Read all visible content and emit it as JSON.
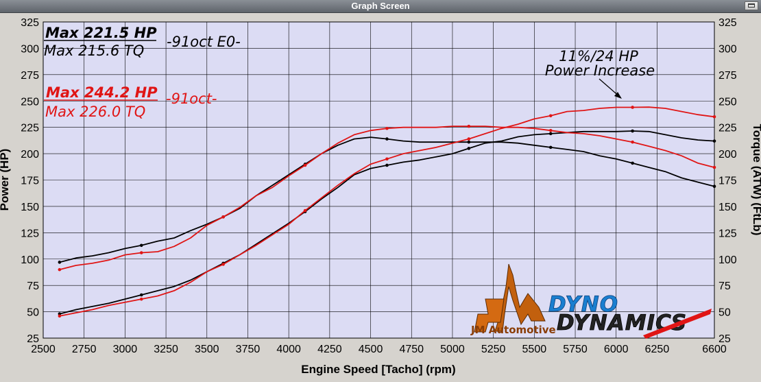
{
  "window": {
    "title": "Graph Screen"
  },
  "chart_data": {
    "type": "line",
    "xlabel": "Engine Speed [Tacho] (rpm)",
    "ylabel_left": "Power (HP)",
    "ylabel_right": "Torque (ATW) (FtLb)",
    "xlim": [
      2500,
      6600
    ],
    "ylim": [
      25,
      325
    ],
    "x_ticks": [
      2500,
      2750,
      3000,
      3250,
      3500,
      3750,
      4000,
      4250,
      4500,
      4750,
      5000,
      5250,
      5500,
      5750,
      6000,
      6250,
      6600
    ],
    "y_ticks": [
      25,
      50,
      75,
      100,
      125,
      150,
      175,
      200,
      225,
      250,
      275,
      300,
      325
    ],
    "grid": true,
    "series": [
      {
        "name": "Power (HP) -91oct E0-",
        "color": "#000000",
        "points": [
          [
            2600,
            48
          ],
          [
            2700,
            52
          ],
          [
            2800,
            55
          ],
          [
            2900,
            58
          ],
          [
            3000,
            62
          ],
          [
            3100,
            66
          ],
          [
            3200,
            70
          ],
          [
            3300,
            74
          ],
          [
            3400,
            80
          ],
          [
            3500,
            88
          ],
          [
            3600,
            96
          ],
          [
            3700,
            104
          ],
          [
            3800,
            114
          ],
          [
            3900,
            124
          ],
          [
            4000,
            134
          ],
          [
            4100,
            145
          ],
          [
            4200,
            157
          ],
          [
            4300,
            168
          ],
          [
            4400,
            180
          ],
          [
            4500,
            186
          ],
          [
            4600,
            189
          ],
          [
            4700,
            192
          ],
          [
            4800,
            194
          ],
          [
            4900,
            197
          ],
          [
            5000,
            200
          ],
          [
            5100,
            205
          ],
          [
            5200,
            210
          ],
          [
            5300,
            212
          ],
          [
            5400,
            216
          ],
          [
            5500,
            218
          ],
          [
            5600,
            219
          ],
          [
            5700,
            220
          ],
          [
            5800,
            221
          ],
          [
            5900,
            221
          ],
          [
            6000,
            221
          ],
          [
            6100,
            221.5
          ],
          [
            6200,
            221
          ],
          [
            6300,
            218
          ],
          [
            6400,
            215
          ],
          [
            6500,
            213
          ],
          [
            6600,
            212
          ]
        ]
      },
      {
        "name": "Torque (FtLb) -91oct E0-",
        "color": "#000000",
        "points": [
          [
            2600,
            97
          ],
          [
            2700,
            101
          ],
          [
            2800,
            103
          ],
          [
            2900,
            106
          ],
          [
            3000,
            110
          ],
          [
            3100,
            113
          ],
          [
            3200,
            117
          ],
          [
            3300,
            120
          ],
          [
            3400,
            127
          ],
          [
            3500,
            133
          ],
          [
            3600,
            140
          ],
          [
            3700,
            148
          ],
          [
            3800,
            160
          ],
          [
            3900,
            170
          ],
          [
            4000,
            180
          ],
          [
            4100,
            190
          ],
          [
            4200,
            200
          ],
          [
            4300,
            208
          ],
          [
            4400,
            214
          ],
          [
            4500,
            215.6
          ],
          [
            4600,
            214
          ],
          [
            4700,
            212
          ],
          [
            4800,
            211
          ],
          [
            4900,
            211
          ],
          [
            5000,
            211
          ],
          [
            5100,
            211
          ],
          [
            5200,
            211
          ],
          [
            5300,
            211
          ],
          [
            5400,
            210
          ],
          [
            5500,
            208
          ],
          [
            5600,
            206
          ],
          [
            5700,
            204
          ],
          [
            5800,
            202
          ],
          [
            5900,
            198
          ],
          [
            6000,
            195
          ],
          [
            6100,
            191
          ],
          [
            6200,
            187
          ],
          [
            6300,
            183
          ],
          [
            6400,
            177
          ],
          [
            6500,
            173
          ],
          [
            6600,
            169
          ]
        ]
      },
      {
        "name": "Power (HP) -91oct-",
        "color": "#e01515",
        "points": [
          [
            2600,
            46
          ],
          [
            2700,
            49
          ],
          [
            2800,
            52
          ],
          [
            2900,
            56
          ],
          [
            3000,
            59
          ],
          [
            3100,
            62
          ],
          [
            3200,
            65
          ],
          [
            3300,
            70
          ],
          [
            3400,
            78
          ],
          [
            3500,
            88
          ],
          [
            3600,
            95
          ],
          [
            3700,
            104
          ],
          [
            3800,
            113
          ],
          [
            3900,
            123
          ],
          [
            4000,
            133
          ],
          [
            4100,
            146
          ],
          [
            4200,
            158
          ],
          [
            4300,
            170
          ],
          [
            4400,
            181
          ],
          [
            4500,
            190
          ],
          [
            4600,
            195
          ],
          [
            4700,
            200
          ],
          [
            4800,
            203
          ],
          [
            4900,
            206
          ],
          [
            5000,
            210
          ],
          [
            5100,
            214
          ],
          [
            5200,
            219
          ],
          [
            5300,
            224
          ],
          [
            5400,
            228
          ],
          [
            5500,
            233
          ],
          [
            5600,
            236
          ],
          [
            5700,
            240
          ],
          [
            5800,
            241
          ],
          [
            5900,
            243
          ],
          [
            6000,
            244
          ],
          [
            6100,
            244
          ],
          [
            6200,
            244.2
          ],
          [
            6300,
            243
          ],
          [
            6400,
            240
          ],
          [
            6500,
            237
          ],
          [
            6600,
            235
          ]
        ]
      },
      {
        "name": "Torque (FtLb) -91oct-",
        "color": "#e01515",
        "points": [
          [
            2600,
            90
          ],
          [
            2700,
            94
          ],
          [
            2800,
            96
          ],
          [
            2900,
            99
          ],
          [
            3000,
            104
          ],
          [
            3100,
            106
          ],
          [
            3200,
            107
          ],
          [
            3300,
            112
          ],
          [
            3400,
            120
          ],
          [
            3500,
            132
          ],
          [
            3600,
            140
          ],
          [
            3700,
            149
          ],
          [
            3800,
            160
          ],
          [
            3900,
            168
          ],
          [
            4000,
            179
          ],
          [
            4100,
            189
          ],
          [
            4200,
            200
          ],
          [
            4300,
            210
          ],
          [
            4400,
            218
          ],
          [
            4500,
            222
          ],
          [
            4600,
            224
          ],
          [
            4700,
            225
          ],
          [
            4800,
            225
          ],
          [
            4900,
            225
          ],
          [
            5000,
            226
          ],
          [
            5100,
            226
          ],
          [
            5200,
            226
          ],
          [
            5300,
            225
          ],
          [
            5400,
            225
          ],
          [
            5500,
            224
          ],
          [
            5600,
            222
          ],
          [
            5700,
            220
          ],
          [
            5800,
            219
          ],
          [
            5900,
            217
          ],
          [
            6000,
            214
          ],
          [
            6100,
            211
          ],
          [
            6200,
            207
          ],
          [
            6300,
            203
          ],
          [
            6400,
            198
          ],
          [
            6500,
            191
          ],
          [
            6600,
            187
          ]
        ]
      }
    ],
    "annotations": {
      "black_hp": "Max 221.5 HP",
      "black_tq": "Max 215.6 TQ",
      "black_tag": "-91oct E0-",
      "red_hp": "Max 244.2 HP",
      "red_tq": "Max 226.0 TQ",
      "red_tag": "-91oct-",
      "increase_line1": "11%/24 HP",
      "increase_line2": "Power Increase"
    }
  },
  "logos": {
    "jm_text": "JM Automotive",
    "dyno_text": "DYNO",
    "dynamics_text": "DYNAMICS"
  },
  "colors": {
    "plot_bg": "#dcdcf4",
    "frame_bg": "#d6d3ce",
    "red": "#e01515",
    "black": "#000000"
  }
}
